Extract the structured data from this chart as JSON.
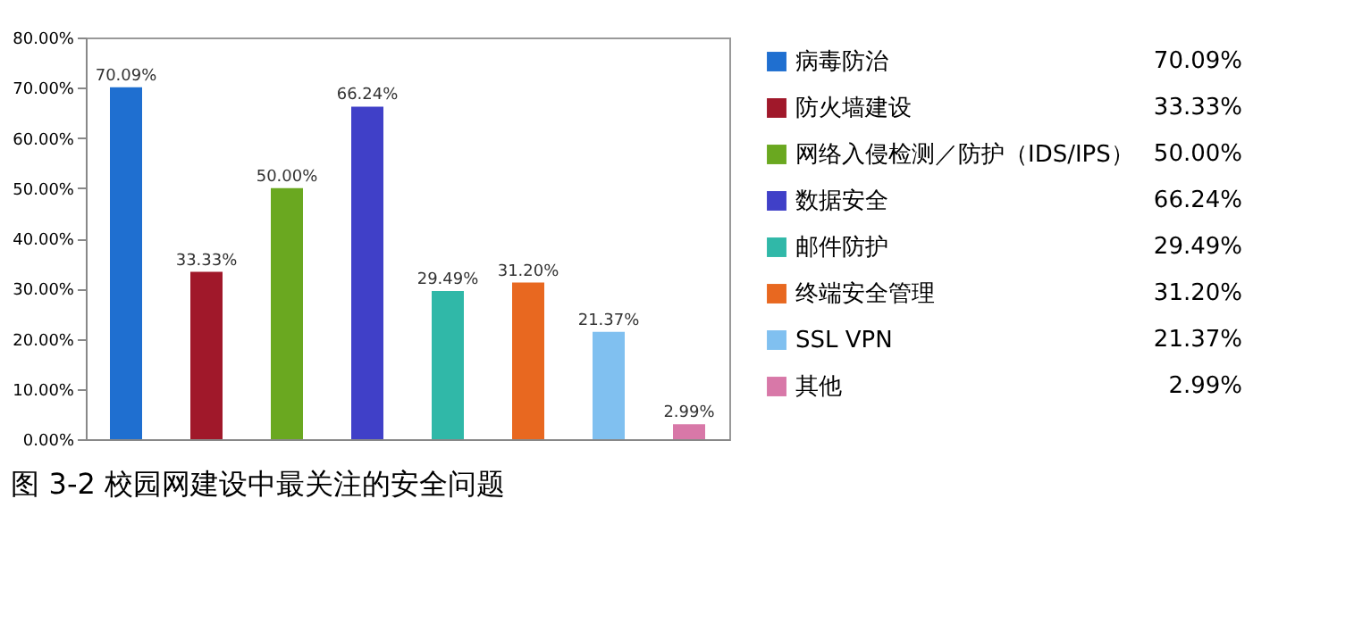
{
  "chart_data": {
    "type": "bar",
    "title": "图 3-2 校园网建设中最关注的安全问题",
    "categories": [
      null,
      null,
      null,
      null,
      null,
      null,
      null,
      null
    ],
    "series": [
      {
        "name": "病毒防治",
        "color": "#1f6fd0",
        "values": [
          70.09,
          null,
          null,
          null,
          null,
          null,
          null,
          null
        ],
        "value_labels": [
          "70.09%",
          null,
          null,
          null,
          null,
          null,
          null,
          null
        ]
      },
      {
        "name": "防火墙建设",
        "color": "#a0182a",
        "values": [
          null,
          33.33,
          null,
          null,
          null,
          null,
          null,
          null
        ],
        "value_labels": [
          null,
          "33.33%",
          null,
          null,
          null,
          null,
          null,
          null
        ]
      },
      {
        "name": "网络入侵检测／防护（IDS/IPS）",
        "color": "#6aa820",
        "values": [
          null,
          null,
          50.0,
          null,
          null,
          null,
          null,
          null
        ],
        "value_labels": [
          null,
          null,
          "50.00%",
          null,
          null,
          null,
          null,
          null
        ]
      },
      {
        "name": "数据安全",
        "color": "#4040c8",
        "values": [
          null,
          null,
          null,
          66.24,
          null,
          null,
          null,
          null
        ],
        "value_labels": [
          null,
          null,
          null,
          "66.24%",
          null,
          null,
          null,
          null
        ]
      },
      {
        "name": "邮件防护",
        "color": "#30b8a8",
        "values": [
          null,
          null,
          null,
          null,
          29.49,
          null,
          null,
          null
        ],
        "value_labels": [
          null,
          null,
          null,
          null,
          "29.49%",
          null,
          null,
          null
        ]
      },
      {
        "name": "终端安全管理",
        "color": "#e86820",
        "values": [
          null,
          null,
          null,
          null,
          null,
          31.2,
          null,
          null
        ],
        "value_labels": [
          null,
          null,
          null,
          null,
          null,
          "31.20%",
          null,
          null
        ]
      },
      {
        "name": "SSL VPN",
        "color": "#80c0f0",
        "values": [
          null,
          null,
          null,
          null,
          null,
          null,
          21.37,
          null
        ],
        "value_labels": [
          null,
          null,
          null,
          null,
          null,
          null,
          "21.37%",
          null
        ]
      },
      {
        "name": "其他",
        "color": "#d878a8",
        "values": [
          null,
          null,
          null,
          null,
          null,
          null,
          null,
          2.99
        ],
        "value_labels": [
          null,
          null,
          null,
          null,
          null,
          null,
          null,
          "2.99%"
        ]
      }
    ],
    "ylim": [
      0,
      80
    ],
    "yticks": [
      {
        "value": 0,
        "label": "0.00%"
      },
      {
        "value": 10,
        "label": "10.00%"
      },
      {
        "value": 20,
        "label": "20.00%"
      },
      {
        "value": 30,
        "label": "30.00%"
      },
      {
        "value": 40,
        "label": "40.00%"
      },
      {
        "value": 50,
        "label": "50.00%"
      },
      {
        "value": 60,
        "label": "60.00%"
      },
      {
        "value": 70,
        "label": "70.00%"
      },
      {
        "value": 80,
        "label": "80.00%"
      }
    ],
    "tick_labels": "y",
    "legend": "right"
  }
}
